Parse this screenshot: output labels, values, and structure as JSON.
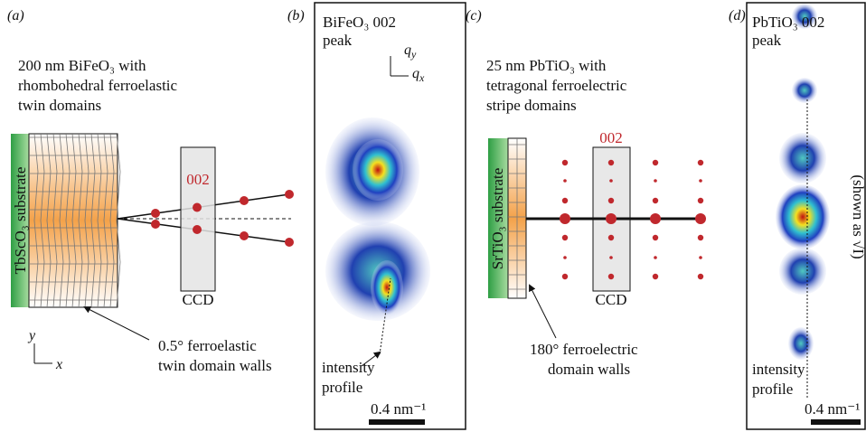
{
  "panels": [
    {
      "label": "(a)",
      "title_lines": [
        "200 nm BiFeO₃ with",
        "rhombohedral ferroelastic",
        "twin domains"
      ],
      "substrate": "TbScO₃ substrate",
      "peak_label": "002",
      "detector": "CCD",
      "annotation_lines": [
        "0.5° ferroelastic",
        "twin domain walls"
      ],
      "axes": {
        "vertical": "y",
        "horizontal": "x"
      }
    },
    {
      "label": "(b)",
      "title_lines": [
        "BiFeO₃ 002",
        "peak"
      ],
      "axes": {
        "vertical": "q",
        "vertical_sub": "y",
        "horizontal": "q",
        "horizontal_sub": "x"
      },
      "annotation_lines": [
        "intensity",
        "profile"
      ],
      "scale_bar": "0.4 nm⁻¹"
    },
    {
      "label": "(c)",
      "title_lines": [
        "25 nm PbTiO₃ with",
        "tetragonal ferroelectric",
        "stripe domains"
      ],
      "substrate": "SrTiO₃ substrate",
      "peak_label": "002",
      "detector": "CCD",
      "annotation_lines": [
        "180° ferroelectric",
        "domain walls"
      ]
    },
    {
      "label": "(d)",
      "title_lines": [
        "PbTiO₃ 002",
        "peak"
      ],
      "side_note": "(shown as √I)",
      "annotation_lines": [
        "intensity",
        "profile"
      ],
      "scale_bar": "0.4 nm⁻¹"
    }
  ]
}
